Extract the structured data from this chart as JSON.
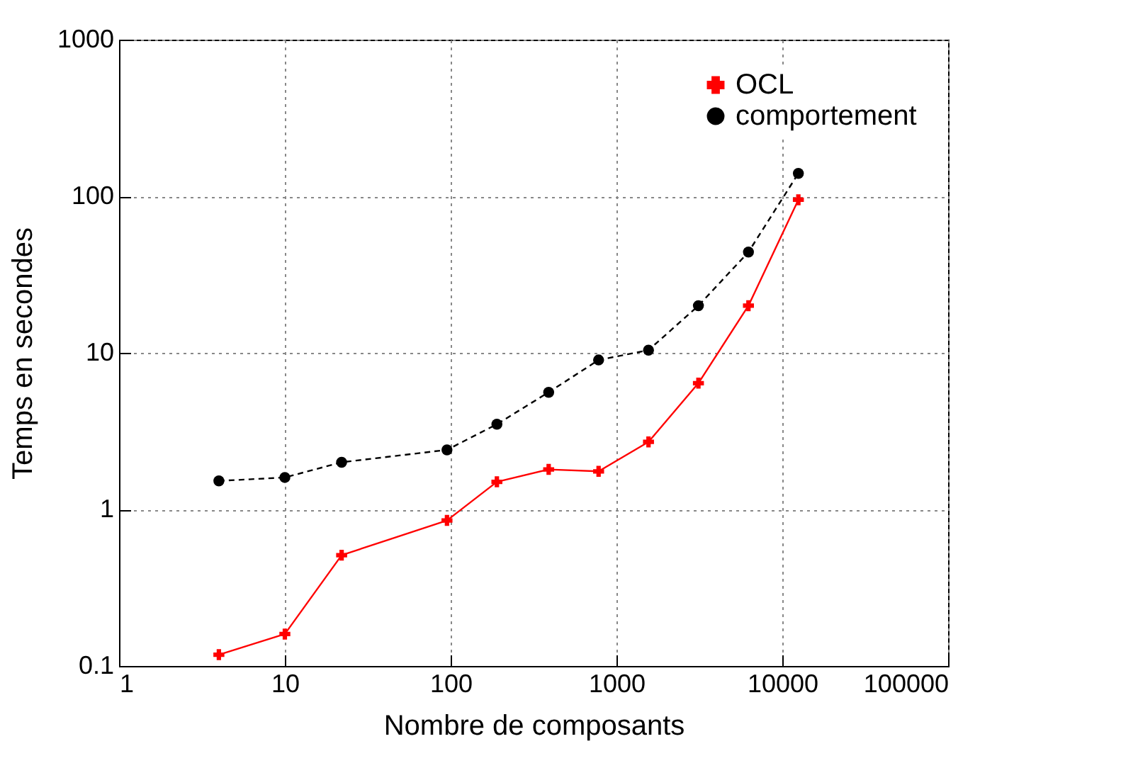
{
  "chart_data": {
    "type": "line",
    "xlabel": "Nombre de composants",
    "ylabel": "Temps en secondes",
    "log": "xy",
    "grid": true,
    "legend": "top right",
    "xlim": [
      1,
      100000
    ],
    "xticks": [
      1,
      10,
      100,
      1000,
      10000,
      100000
    ],
    "ylim": [
      0.1,
      1000
    ],
    "yticks": [
      0.1,
      1,
      10,
      100,
      1000
    ],
    "x": [
      4,
      10,
      22,
      95,
      190,
      390,
      780,
      1560,
      3120,
      6250,
      12500
    ],
    "series": [
      {
        "name": "OCL",
        "color": "#ff0000",
        "marker": "cross",
        "line_style": "solid",
        "values": [
          0.118,
          0.16,
          0.51,
          0.85,
          1.5,
          1.8,
          1.75,
          2.7,
          6.4,
          20,
          95
        ]
      },
      {
        "name": "comportement",
        "color": "#000000",
        "marker": "circle",
        "line_style": "dashed",
        "values": [
          1.52,
          1.6,
          2.0,
          2.4,
          3.5,
          5.6,
          9,
          10.4,
          20,
          44,
          140
        ]
      }
    ]
  }
}
